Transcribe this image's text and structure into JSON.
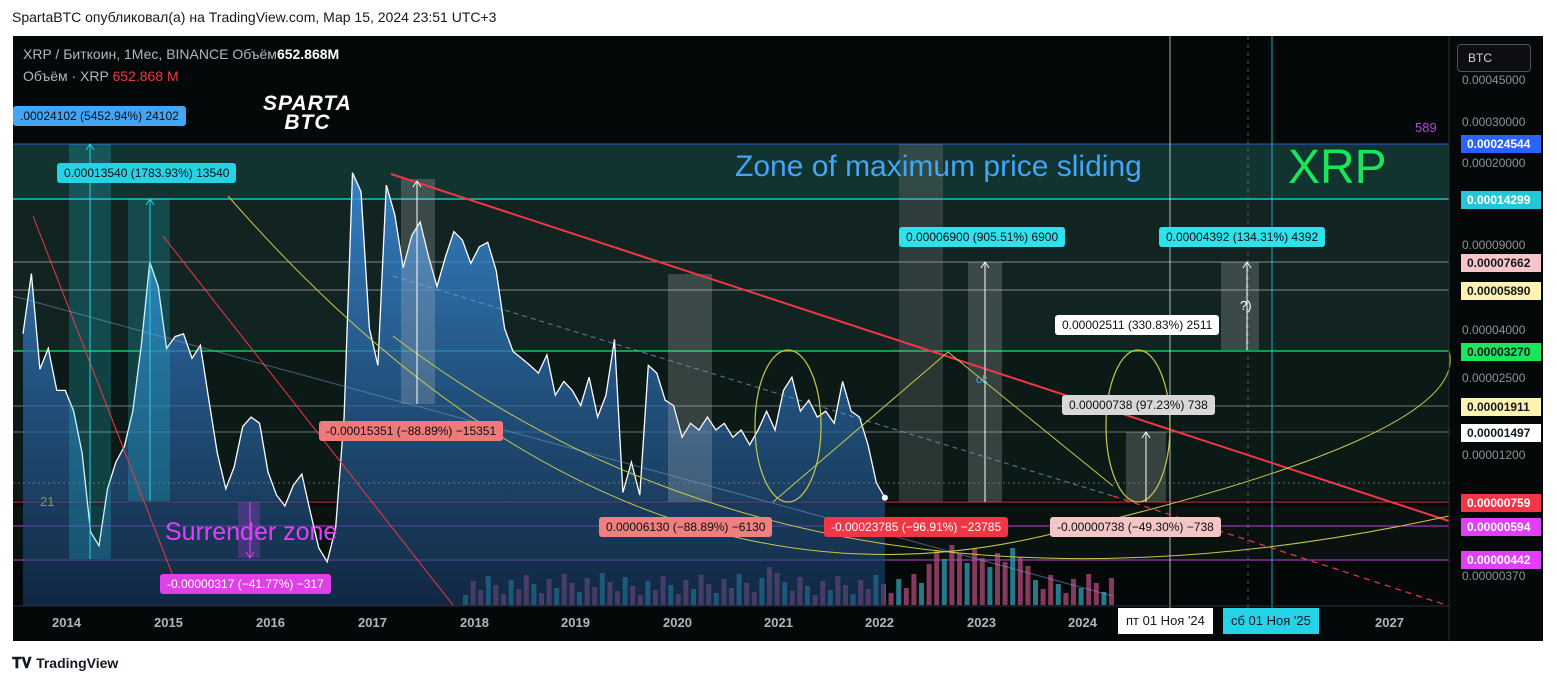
{
  "header": {
    "publisher_line": "SpartaBTC опубликовал(а) на TradingView.com, Мар 15, 2024 23:51 UTC+3"
  },
  "legend": {
    "symbol_line": "XRP / Биткоин, 1Мес, BINANCE",
    "volume_label": "Объём",
    "volume_value": "652.868",
    "volume_unit": "M",
    "volume_line_label": "Объём · XRP",
    "volume_line_value": "652.868 M"
  },
  "currency_button": "BTC",
  "logo": {
    "line1": "SPARTA",
    "line2": "BTC"
  },
  "annotations": {
    "zone_title": "Zone of maximum price sliding",
    "coin": "XRP",
    "surrender": "Surrender zone",
    "count_589": "589",
    "count_21": "21",
    "question": "?)",
    "ok": "ok"
  },
  "measure_labels": [
    {
      "text": ".00024102 (5452.94%) 24102",
      "bg": "#42a5f5",
      "fg": "#0b0e14"
    },
    {
      "text": "0.00013540 (1783.93%) 13540",
      "bg": "#26d3e6",
      "fg": "#0b0e14"
    },
    {
      "text": "-0.00015351 (−88.89%) −15351",
      "bg": "#f07a7a",
      "fg": "#0b0e14"
    },
    {
      "text": "0.00006900 (905.51%) 6900",
      "bg": "#2ee1ec",
      "fg": "#0b0e14"
    },
    {
      "text": "0.00004392 (134.31%) 4392",
      "bg": "#2ee1ec",
      "fg": "#0b0e14"
    },
    {
      "text": "0.00002511 (330.83%) 2511",
      "bg": "#ffffff",
      "fg": "#0b0e14"
    },
    {
      "text": "0.00000738 (97.23%) 738",
      "bg": "#d8d8d8",
      "fg": "#0b0e14"
    },
    {
      "text": "0.00006130 (−88.89%) −6130",
      "bg": "#f08080",
      "fg": "#0b0e14"
    },
    {
      "text": "-0.00023785 (−96.91%) −23785",
      "bg": "#f23645",
      "fg": "#ffffff"
    },
    {
      "text": "-0.00000738 (−49.30%) −738",
      "bg": "#f5c6c6",
      "fg": "#0b0e14"
    },
    {
      "text": "-0.00000317 (−41.77%) −317",
      "bg": "#e040e8",
      "fg": "#ffffff"
    }
  ],
  "price_ticks": [
    "0.00045000",
    "0.00030000",
    "0.00020000",
    "0.00009000",
    "0.00004000",
    "0.00002500",
    "0.00001200",
    "0.00000370"
  ],
  "price_tags": [
    {
      "text": "0.00024544",
      "bg": "#2962ff",
      "fg": "#ffffff"
    },
    {
      "text": "0.00014299",
      "bg": "#26c6da",
      "fg": "#ffffff"
    },
    {
      "text": "0.00007662",
      "bg": "#f8c6c6",
      "fg": "#131722"
    },
    {
      "text": "0.00005890",
      "bg": "#fff3b0",
      "fg": "#131722"
    },
    {
      "text": "0.00003270",
      "bg": "#19e65a",
      "fg": "#131722"
    },
    {
      "text": "0.00001911",
      "bg": "#fff3b0",
      "fg": "#131722"
    },
    {
      "text": "0.00001497",
      "bg": "#ffffff",
      "fg": "#131722"
    },
    {
      "text": "0.00000759",
      "bg": "#f23645",
      "fg": "#ffffff"
    },
    {
      "text": "0.00000594",
      "bg": "#e040fb",
      "fg": "#ffffff"
    },
    {
      "text": "0.00000442",
      "bg": "#e040fb",
      "fg": "#ffffff"
    }
  ],
  "date_tags": [
    "пт 01 Ноя '24",
    "сб 01 Ноя '25"
  ],
  "footer": {
    "brand": "TradingView"
  },
  "colors": {
    "bg": "#050808",
    "area_top": "#3a8fe0",
    "line": "#ffffff",
    "resistance": "#f23645",
    "level_green": "#19e65a",
    "zone_teal": "#1e5a52",
    "cyan": "#26d3e6",
    "magenta": "#e040fb"
  },
  "chart_data": {
    "type": "area",
    "title": "",
    "xlabel": "",
    "ylabel": "",
    "scale": "log",
    "ylim": [
      3.5e-06,
      0.00045
    ],
    "x_ticks": [
      "2014",
      "2015",
      "2016",
      "2017",
      "2018",
      "2019",
      "2020",
      "2021",
      "2022",
      "2023",
      "2024",
      "2027"
    ],
    "series": [
      {
        "values": [
          3.8e-05,
          6.8e-05,
          2.7e-05,
          3.3e-05,
          2.2e-05,
          2.2e-05,
          1.8e-05,
          1.2e-05,
          5.6e-06,
          4.9e-06,
          8.5e-06,
          1.1e-05,
          1.28e-05,
          1.8e-05,
          3.4e-05,
          7.6e-05,
          6e-05,
          3.3e-05,
          3.7e-05,
          3.8e-05,
          3e-05,
          3.4e-05,
          2e-05,
          1.2e-05,
          8.5e-06,
          1.05e-05,
          1.55e-05,
          1.7e-05,
          1.6e-05,
          1e-05,
          8e-06,
          7.2e-06,
          8.8e-06,
          9.8e-06,
          6.8e-06,
          4.8e-06,
          4.2e-06,
          5.8e-06,
          1.7e-05,
          0.00018,
          0.00015,
          4e-05,
          2.8e-05,
          0.00016,
          0.00012,
          7.2e-05,
          9.8e-05,
          0.000112,
          8e-05,
          6e-05,
          8e-05,
          0.000102,
          9.4e-05,
          7.5e-05,
          8.8e-05,
          9.2e-05,
          7e-05,
          4e-05,
          3.2e-05,
          3e-05,
          2.8e-05,
          2.6e-05,
          3.1e-05,
          2.1e-05,
          2.4e-05,
          2.2e-05,
          1.9e-05,
          2.5e-05,
          1.7e-05,
          2.1e-05,
          3.6e-05,
          8.2e-06,
          1.1e-05,
          8e-06,
          2.8e-05,
          2.6e-05,
          2e-05,
          1.9e-05,
          1.4e-05,
          1.6e-05,
          1.5e-05,
          1.7e-05,
          1.5e-05,
          1.6e-05,
          1.4e-05,
          1.5e-05,
          1.3e-05,
          1.5e-05,
          1.8e-05,
          1.5e-05,
          2.2e-05,
          2.5e-05,
          1.8e-05,
          2e-05,
          1.7e-05,
          1.8e-05,
          1.6e-05,
          2.4e-05,
          1.8e-05,
          1.7e-05,
          1.3e-05,
          9e-06,
          7.8e-06
        ]
      }
    ]
  }
}
